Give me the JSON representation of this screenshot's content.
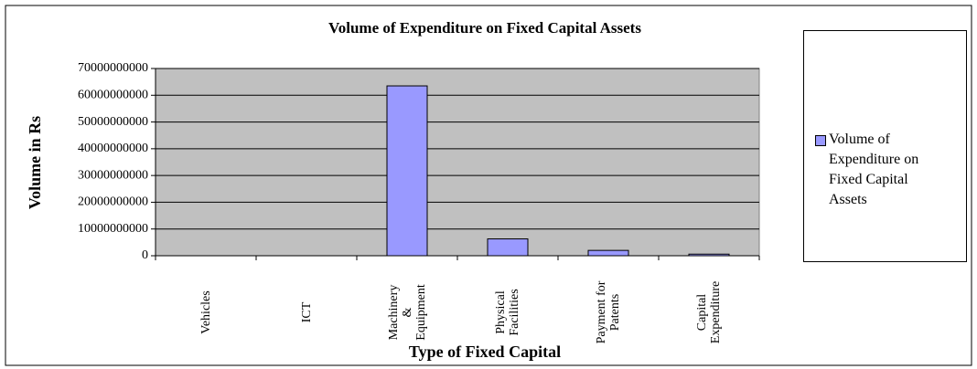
{
  "chart_data": {
    "type": "bar",
    "title": "Volume of Expenditure on Fixed Capital Assets",
    "x_label": "Type of Fixed Capital",
    "y_label": "Volume in Rs",
    "categories": [
      "Vehicles",
      "ICT",
      "Machinery\n&\nEquipment",
      "Physical\nFacilities",
      "Payment for\nPatents",
      "Capital\nExpenditure"
    ],
    "series": [
      {
        "name": "Volume of Expenditure on Fixed Capital Assets",
        "color": "#9999ff",
        "values": [
          0,
          0,
          63500000000,
          6300000000,
          2000000000,
          600000000
        ]
      }
    ],
    "ylim": [
      0,
      70000000000
    ],
    "yticks": [
      0,
      10000000000,
      20000000000,
      30000000000,
      40000000000,
      50000000000,
      60000000000,
      70000000000
    ],
    "grid": true,
    "legend": "right"
  }
}
